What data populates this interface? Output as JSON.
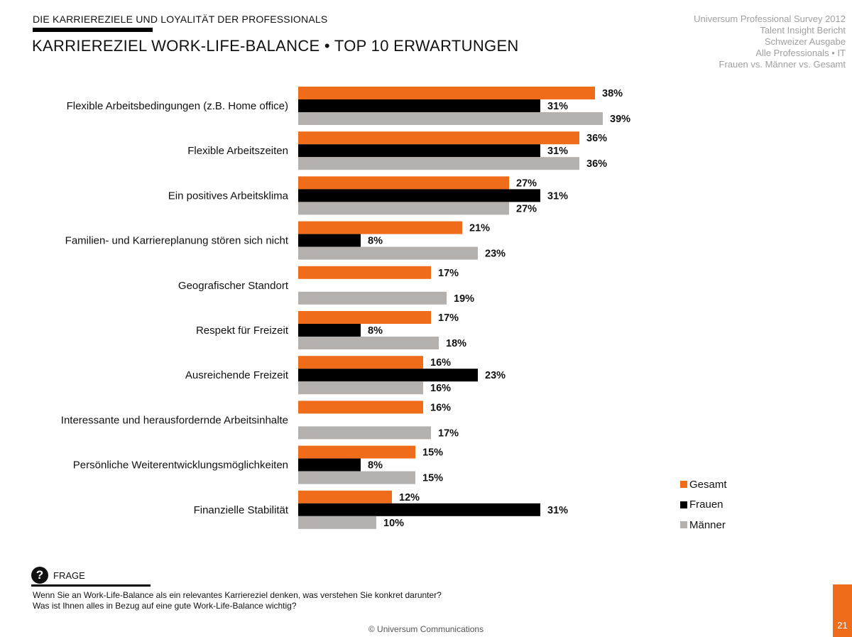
{
  "header": {
    "section_title": "DIE KARRIEREZIELE UND LOYALITÄT DER PROFESSIONALS",
    "main_title": "KARRIEREZIEL WORK-LIFE-BALANCE • TOP 10 ERWARTUNGEN",
    "meta_lines": [
      "Universum Professional Survey 2012",
      "Talent Insight Bericht",
      "Schweizer Ausgabe",
      "Alle Professionals • IT",
      "Frauen vs. Männer vs. Gesamt"
    ]
  },
  "chart_data": {
    "type": "bar",
    "orientation": "horizontal",
    "categories": [
      "Flexible Arbeitsbedingungen (z.B. Home office)",
      "Flexible Arbeitszeiten",
      "Ein positives Arbeitsklima",
      "Familien- und Karriereplanung stören sich nicht",
      "Geografischer Standort",
      "Respekt für Freizeit",
      "Ausreichende Freizeit",
      "Interessante und herausfordernde Arbeitsinhalte",
      "Persönliche Weiterentwicklungsmöglichkeiten",
      "Finanzielle Stabilität"
    ],
    "series": [
      {
        "name": "Gesamt",
        "color": "#ef6c1a",
        "values": [
          38,
          36,
          27,
          21,
          17,
          17,
          16,
          16,
          15,
          12
        ]
      },
      {
        "name": "Frauen",
        "color": "#000000",
        "values": [
          31,
          31,
          31,
          8,
          null,
          8,
          23,
          null,
          8,
          31
        ]
      },
      {
        "name": "Männer",
        "color": "#b3b0ad",
        "values": [
          39,
          36,
          27,
          23,
          19,
          18,
          16,
          17,
          15,
          10
        ]
      }
    ],
    "value_suffix": "%",
    "xlim": [
      0,
      40
    ],
    "grid": false,
    "legend_position": "bottom-right"
  },
  "legend": {
    "items": [
      {
        "label": "Gesamt",
        "color": "#ef6c1a"
      },
      {
        "label": "Frauen",
        "color": "#000000"
      },
      {
        "label": "Männer",
        "color": "#b3b0ad"
      }
    ]
  },
  "frage": {
    "icon": "question-icon",
    "label": "FRAGE",
    "line1": "Wenn Sie an Work-Life-Balance als ein relevantes Karriereziel denken, was verstehen Sie konkret darunter?",
    "line2": "Was ist Ihnen alles in Bezug auf eine gute Work-Life-Balance wichtig?"
  },
  "footer": {
    "copyright": "© Universum Communications",
    "page_number": "21"
  }
}
